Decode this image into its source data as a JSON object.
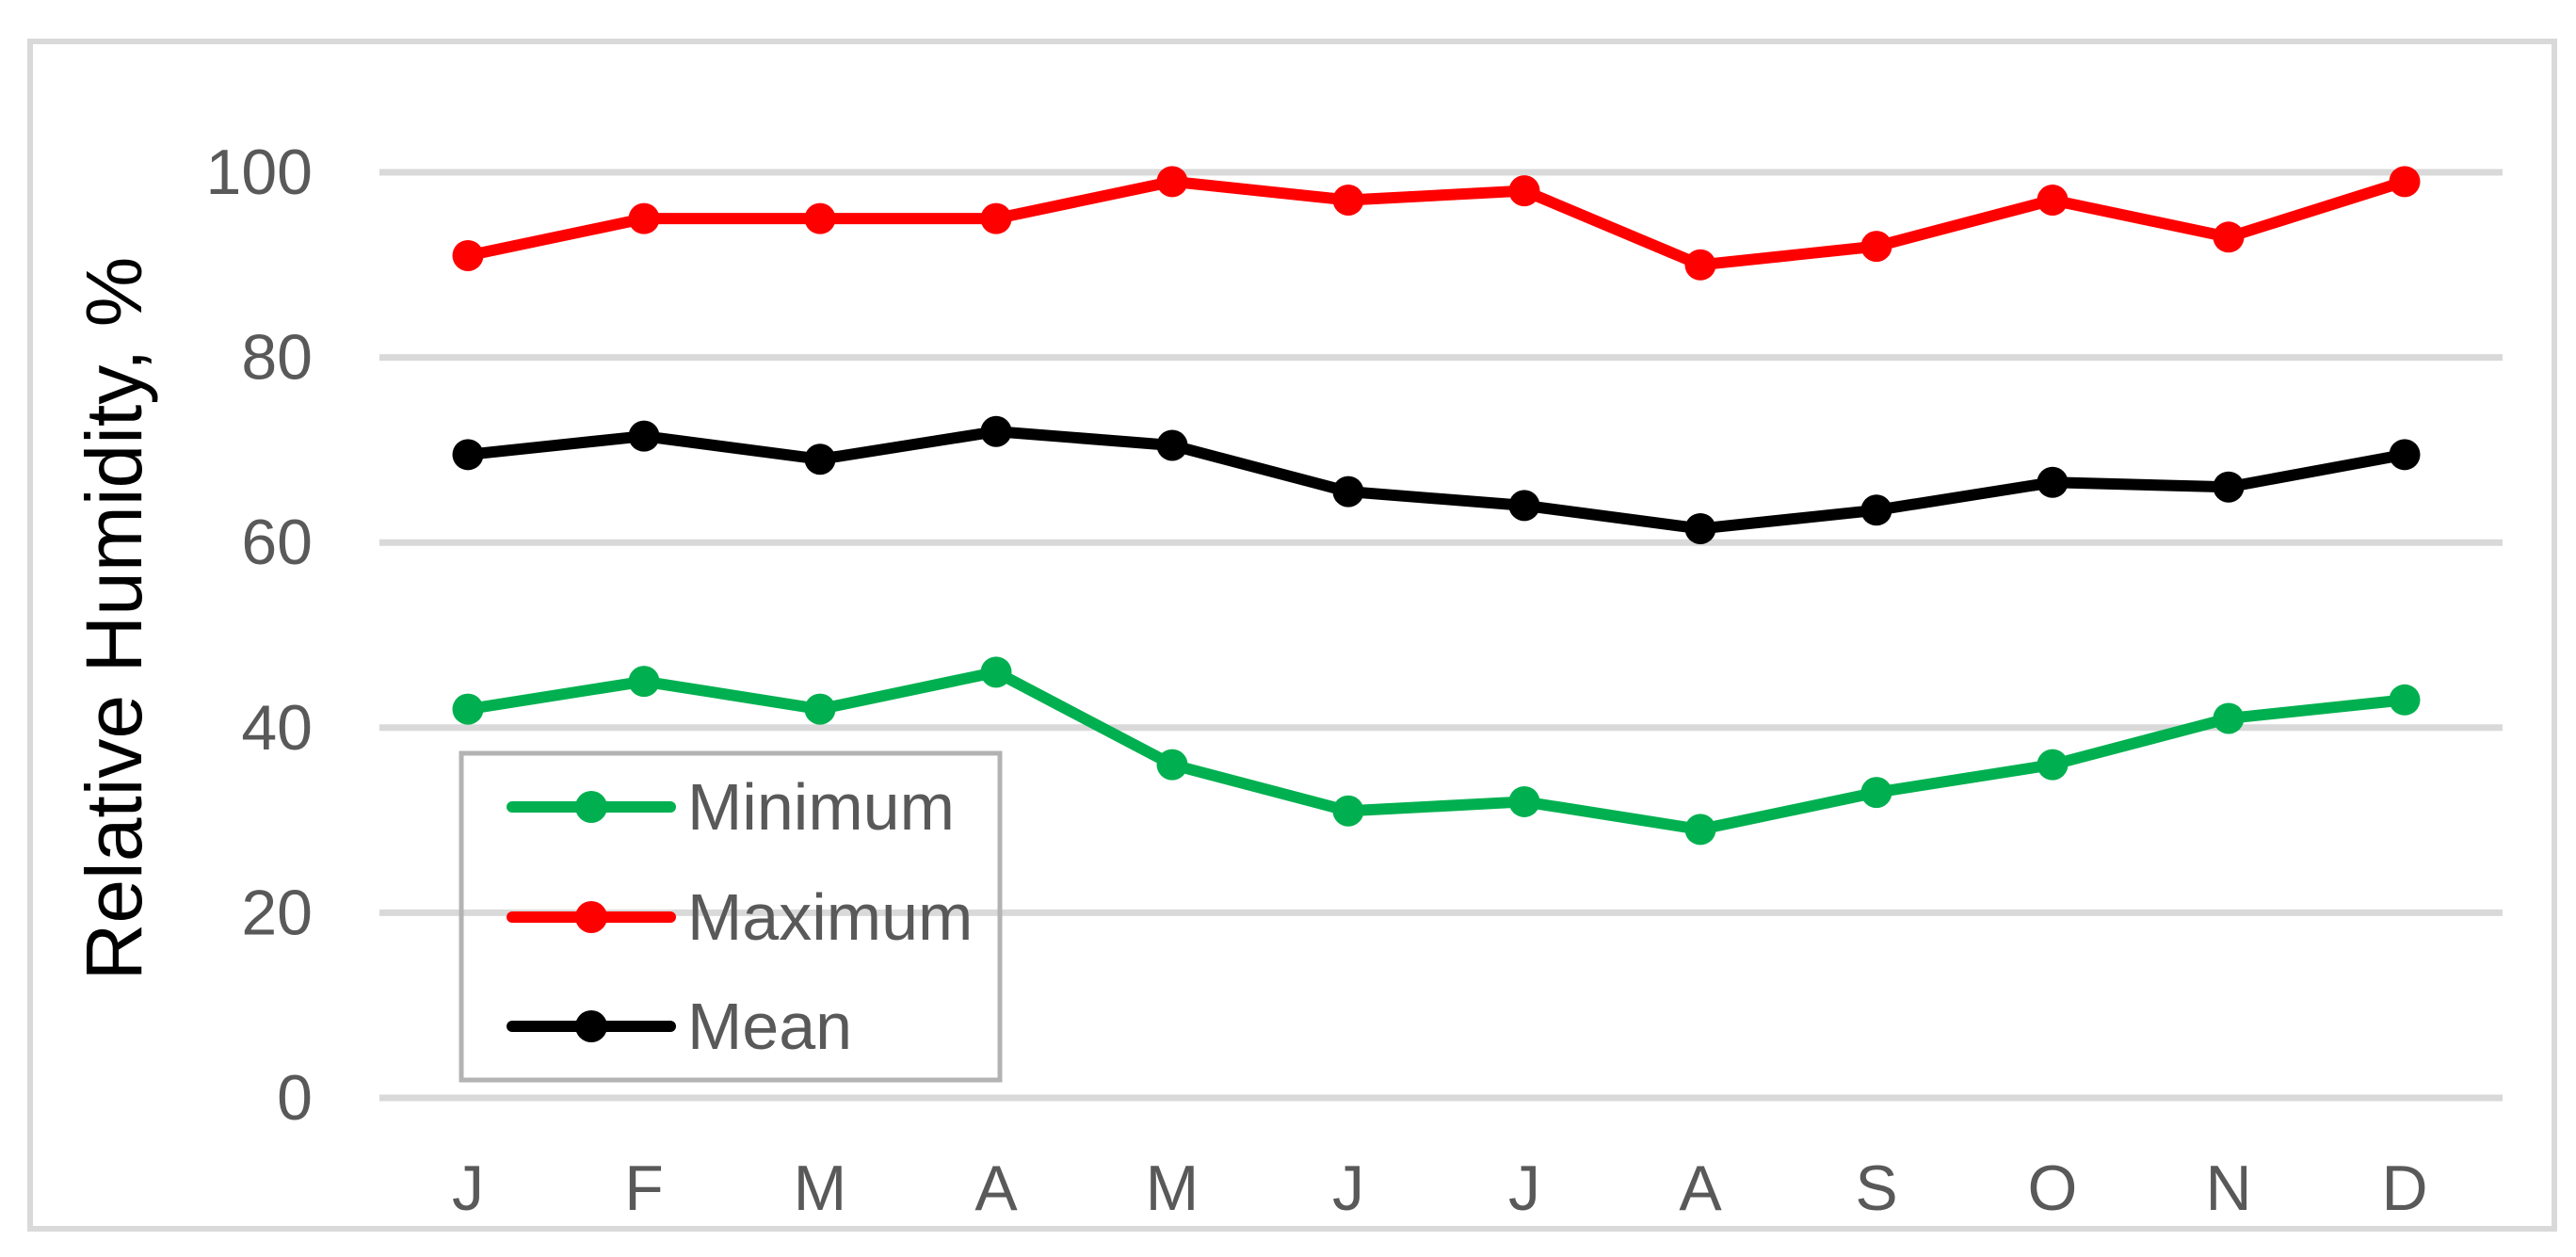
{
  "chart_data": {
    "type": "line",
    "title": "",
    "xlabel": "",
    "ylabel": "Relative Humidity, %",
    "categories": [
      "J",
      "F",
      "M",
      "A",
      "M",
      "J",
      "J",
      "A",
      "S",
      "O",
      "N",
      "D"
    ],
    "series": [
      {
        "name": "Minimum",
        "color": "#00B050",
        "values": [
          42,
          45,
          42,
          46,
          36,
          31,
          32,
          29,
          33,
          36,
          41,
          43
        ]
      },
      {
        "name": "Maximum",
        "color": "#FF0000",
        "values": [
          91,
          95,
          95,
          95,
          99,
          97,
          98,
          90,
          92,
          97,
          93,
          99
        ]
      },
      {
        "name": "Mean",
        "color": "#000000",
        "values": [
          69.5,
          71.5,
          69,
          72,
          70.5,
          65.5,
          64,
          61.5,
          63.5,
          66.5,
          66,
          69.5
        ]
      }
    ],
    "ylim": [
      0,
      100
    ],
    "yticks": [
      0,
      20,
      40,
      60,
      80,
      100
    ],
    "grid": "horizontal",
    "legend_position": "inside-bottom-left",
    "marker": "circle",
    "colors": {
      "gridline": "#D9D9D9",
      "frame_border": "#D9D9D9",
      "legend_border": "#B3B3B3",
      "axis_text": "#595959",
      "axis_title_text": "#000000",
      "background": "#FFFFFF"
    }
  }
}
